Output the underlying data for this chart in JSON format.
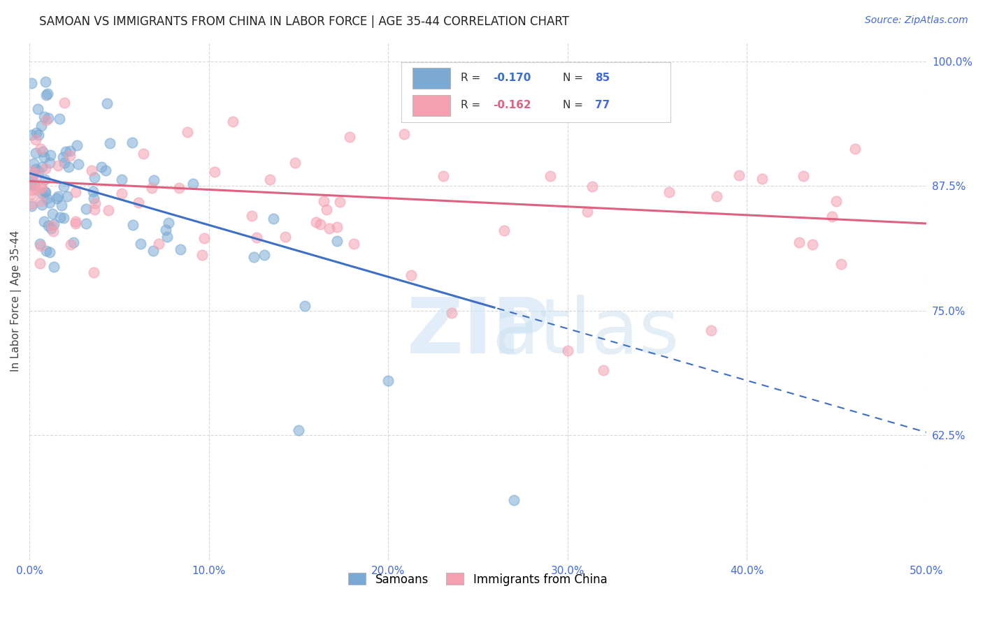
{
  "title": "SAMOAN VS IMMIGRANTS FROM CHINA IN LABOR FORCE | AGE 35-44 CORRELATION CHART",
  "source": "Source: ZipAtlas.com",
  "ylabel": "In Labor Force | Age 35-44",
  "xlim": [
    0.0,
    0.5
  ],
  "ylim": [
    0.5,
    1.02
  ],
  "ytick_positions": [
    0.625,
    0.75,
    0.875,
    1.0
  ],
  "ytick_labels": [
    "62.5%",
    "75.0%",
    "87.5%",
    "100.0%"
  ],
  "xtick_positions": [
    0.0,
    0.1,
    0.2,
    0.3,
    0.4,
    0.5
  ],
  "xtick_labels": [
    "0.0%",
    "10.0%",
    "20.0%",
    "30.0%",
    "40.0%",
    "50.0%"
  ],
  "samoans_color": "#7aaad4",
  "china_color": "#f4a0b0",
  "trendline_samoan_color": "#3d6fc4",
  "trendline_china_color": "#e06080",
  "R_samoan": -0.17,
  "N_samoan": 85,
  "R_china": -0.162,
  "N_china": 77,
  "background_color": "#ffffff",
  "grid_color": "#d8d8d8",
  "title_color": "#222222",
  "source_color": "#4169e1",
  "tick_color": "#4169e1",
  "ylabel_color": "#444444",
  "legend_R_color_samoan": "#3d6fc4",
  "legend_R_color_china": "#e06080",
  "legend_N_color": "#4169e1",
  "legend_label_color": "#333333",
  "trendline_samoan_intercept": 0.888,
  "trendline_samoan_slope": -0.52,
  "trendline_china_intercept": 0.88,
  "trendline_china_slope": -0.085,
  "trendline_samoan_solid_end": 0.26,
  "trendline_china_end": 0.5
}
